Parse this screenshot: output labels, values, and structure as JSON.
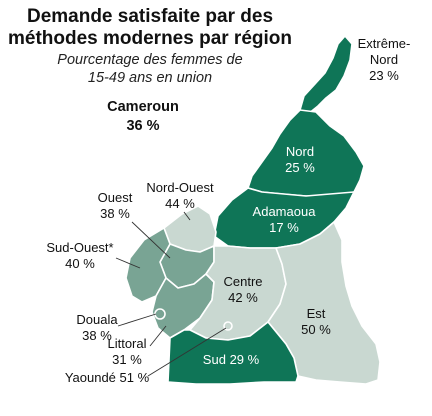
{
  "title": {
    "line1": "Demande satisfaite par des",
    "line2": "méthodes modernes par région"
  },
  "subtitle": {
    "line1": "Pourcentage des femmes de",
    "line2": "15-49 ans en union"
  },
  "national": {
    "name": "Cameroun",
    "value": "36 %"
  },
  "colors": {
    "dark": "#0f7557",
    "medium": "#79a494",
    "light": "#c9d8d1",
    "border": "#ffffff"
  },
  "regions": [
    {
      "id": "extreme-nord",
      "name_line1": "Extrême-",
      "name_line2": "Nord",
      "value": "23 %",
      "value_num": 23,
      "shade": "dark"
    },
    {
      "id": "nord",
      "name": "Nord",
      "value": "25 %",
      "value_num": 25,
      "shade": "dark"
    },
    {
      "id": "adamaoua",
      "name": "Adamaoua",
      "value": "17 %",
      "value_num": 17,
      "shade": "dark"
    },
    {
      "id": "nord-ouest",
      "name": "Nord-Ouest",
      "value": "44 %",
      "value_num": 44,
      "shade": "light"
    },
    {
      "id": "ouest",
      "name": "Ouest",
      "value": "38 %",
      "value_num": 38,
      "shade": "medium"
    },
    {
      "id": "sud-ouest",
      "name": "Sud-Ouest*",
      "value": "40 %",
      "value_num": 40,
      "shade": "medium"
    },
    {
      "id": "douala",
      "name": "Douala",
      "value": "38 %",
      "value_num": 38,
      "shade": "medium"
    },
    {
      "id": "littoral",
      "name": "Littoral",
      "value": "31 %",
      "value_num": 31,
      "shade": "medium"
    },
    {
      "id": "yaounde",
      "name": "Yaoundé",
      "value": "51 %",
      "value_num": 51,
      "shade": "light"
    },
    {
      "id": "centre",
      "name": "Centre",
      "value": "42 %",
      "value_num": 42,
      "shade": "light"
    },
    {
      "id": "est",
      "name": "Est",
      "value": "50 %",
      "value_num": 50,
      "shade": "light"
    },
    {
      "id": "sud",
      "name": "Sud",
      "value": "29 %",
      "value_num": 29,
      "shade": "dark"
    }
  ]
}
